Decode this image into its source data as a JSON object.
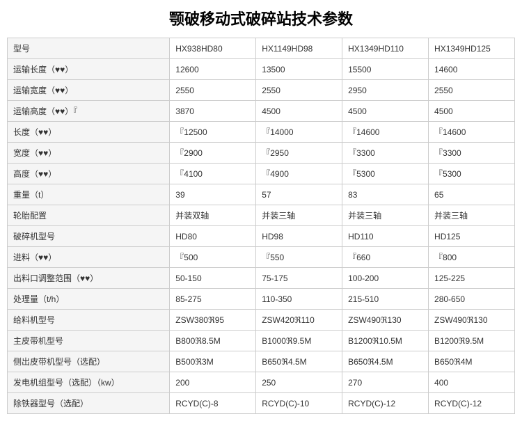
{
  "title": "颚破移动式破碎站技术参数",
  "table": {
    "columns": [
      "型号",
      "HX938HD80",
      "HX1149HD98",
      "HX1349HD110",
      "HX1349HD125"
    ],
    "rows": [
      [
        "运输长度（♥♥）",
        "12600",
        "13500",
        "15500",
        "14600"
      ],
      [
        "运输宽度（♥♥）",
        "2550",
        "2550",
        "2950",
        "2550"
      ],
      [
        "运输高度（♥♥）『",
        "3870",
        "4500",
        "4500",
        "4500"
      ],
      [
        "长度（♥♥）",
        "『12500",
        "『14000",
        "『14600",
        "『14600"
      ],
      [
        "宽度（♥♥）",
        "『2900",
        "『2950",
        "『3300",
        "『3300"
      ],
      [
        "高度（♥♥）",
        "『4100",
        "『4900",
        "『5300",
        "『5300"
      ],
      [
        "重量（t）",
        "39",
        "57",
        "83",
        "65"
      ],
      [
        "轮胎配置",
        "并装双轴",
        "并装三轴",
        "并装三轴",
        "并装三轴"
      ],
      [
        "破碎机型号",
        "HD80",
        "HD98",
        "HD110",
        "HD125"
      ],
      [
        "进料（♥♥）",
        "『500",
        "『550",
        "『660",
        "『800"
      ],
      [
        "出料口调整范围（♥♥）",
        "50-150",
        "75-175",
        "100-200",
        "125-225"
      ],
      [
        "处理量（t/h）",
        "85-275",
        "110-350",
        "215-510",
        "280-650"
      ],
      [
        "给料机型号",
        "ZSW380ℜ95",
        "ZSW420ℜ110",
        "ZSW490ℜ130",
        "ZSW490ℜ130"
      ],
      [
        "主皮带机型号",
        "B800ℜ8.5M",
        "B1000ℜ9.5M",
        "B1200ℜ10.5M",
        "B1200ℜ9.5M"
      ],
      [
        "侧出皮带机型号（选配）",
        "B500ℜ3M",
        "B650ℜ4.5M",
        "B650ℜ4.5M",
        "B650ℜ4M"
      ],
      [
        "发电机组型号（选配）（kw）",
        "200",
        "250",
        "270",
        "400"
      ],
      [
        "除铁器型号（选配）",
        "RCYD(C)-8",
        "RCYD(C)-10",
        "RCYD(C)-12",
        "RCYD(C)-12"
      ]
    ]
  },
  "styling": {
    "background_color": "#ffffff",
    "border_color": "#cccccc",
    "header_bg_color": "#f5f5f5",
    "text_color": "#333333",
    "title_color": "#000000",
    "title_fontsize": 22,
    "cell_fontsize": 12,
    "font_family": "Microsoft YaHei"
  }
}
